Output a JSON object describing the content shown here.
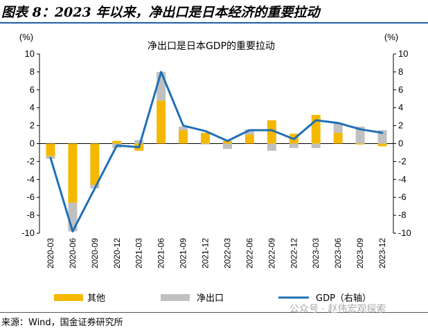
{
  "header": {
    "figure_title": "图表 8：2023 年以来，净出口是日本经济的重要拉动"
  },
  "footer": {
    "source": "来源：Wind，国金证券研究所",
    "watermark": "公众号 · 赵伟宏观探索"
  },
  "colors": {
    "other": "#f5b800",
    "net_exports": "#c0c0c0",
    "gdp": "#1f6fb5",
    "rule": "#1f5fa0"
  },
  "chart_data": {
    "type": "bar",
    "title": "净出口是日本GDP的重要拉动",
    "y_left_unit": "(%)",
    "y_right_unit": "(%)",
    "ylim": [
      -10,
      10
    ],
    "yticks": [
      -10,
      -8,
      -6,
      -4,
      -2,
      0,
      2,
      4,
      6,
      8,
      10
    ],
    "y_right_lim": [
      -10,
      10
    ],
    "y_right_ticks": [
      -10,
      -8,
      -6,
      -4,
      -2,
      0,
      2,
      4,
      6,
      8,
      10
    ],
    "categories": [
      "2020-03",
      "2020-06",
      "2020-09",
      "2020-12",
      "2021-03",
      "2021-06",
      "2021-09",
      "2021-12",
      "2022-03",
      "2022-06",
      "2022-09",
      "2022-12",
      "2023-03",
      "2023-06",
      "2023-09",
      "2023-12"
    ],
    "stacked": true,
    "series": [
      {
        "name": "其他",
        "kind": "bar",
        "values": [
          -1.4,
          -6.6,
          -4.6,
          0.3,
          -0.8,
          4.8,
          1.5,
          1.2,
          0.3,
          1.0,
          2.6,
          1.1,
          3.2,
          1.2,
          -0.1,
          -0.3
        ]
      },
      {
        "name": "净出口",
        "kind": "bar",
        "values": [
          -0.3,
          -3.2,
          -0.4,
          -0.5,
          0.4,
          3.2,
          0.4,
          -0.1,
          -0.6,
          0.6,
          -0.8,
          -0.5,
          -0.5,
          1.1,
          1.9,
          1.5
        ]
      },
      {
        "name": "GDP（右轴）",
        "kind": "line",
        "axis": "right",
        "values": [
          -1.6,
          -9.8,
          -5.0,
          -0.2,
          -0.4,
          8.0,
          2.0,
          1.4,
          0.3,
          1.5,
          1.5,
          0.5,
          2.6,
          2.3,
          1.6,
          1.2
        ]
      }
    ],
    "legend_position": "bottom",
    "grid": false
  }
}
